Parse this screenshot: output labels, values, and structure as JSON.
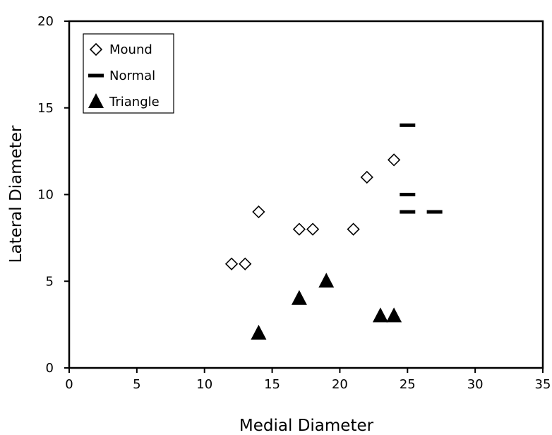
{
  "chart_data": {
    "type": "scatter",
    "title": "",
    "xlabel": "Medial Diameter",
    "ylabel": "Lateral Diameter",
    "xlim": [
      0,
      35
    ],
    "ylim": [
      0,
      20
    ],
    "xticks": [
      "0",
      "5",
      "10",
      "15",
      "20",
      "25",
      "30",
      "35"
    ],
    "yticks": [
      "0",
      "5",
      "10",
      "15",
      "20"
    ],
    "grid": false,
    "legend_position": "top-left",
    "series": [
      {
        "name": "Mound",
        "marker": "diamond-open",
        "color": "#000000",
        "points": [
          {
            "x": 12,
            "y": 6
          },
          {
            "x": 13,
            "y": 6
          },
          {
            "x": 14,
            "y": 9
          },
          {
            "x": 17,
            "y": 8
          },
          {
            "x": 18,
            "y": 8
          },
          {
            "x": 21,
            "y": 8
          },
          {
            "x": 22,
            "y": 11
          },
          {
            "x": 24,
            "y": 12
          }
        ]
      },
      {
        "name": "Normal",
        "marker": "dash",
        "color": "#000000",
        "points": [
          {
            "x": 25,
            "y": 14
          },
          {
            "x": 25,
            "y": 10
          },
          {
            "x": 25,
            "y": 9
          },
          {
            "x": 27,
            "y": 9
          }
        ]
      },
      {
        "name": "Triangle",
        "marker": "triangle-filled",
        "color": "#000000",
        "points": [
          {
            "x": 14,
            "y": 2
          },
          {
            "x": 17,
            "y": 4
          },
          {
            "x": 19,
            "y": 5
          },
          {
            "x": 23,
            "y": 3
          },
          {
            "x": 24,
            "y": 3
          }
        ]
      }
    ]
  }
}
